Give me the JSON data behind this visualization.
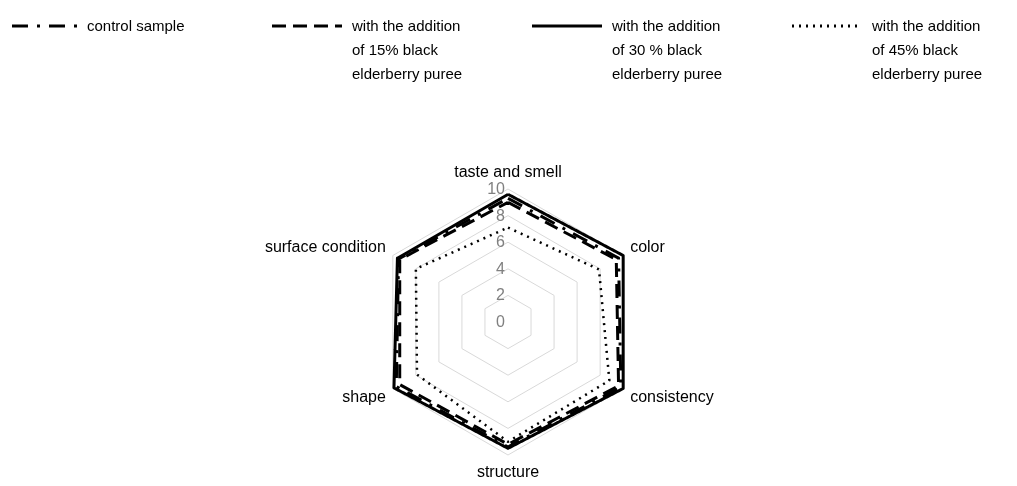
{
  "chart_data": {
    "type": "radar",
    "categories": [
      "taste and smell",
      "color",
      "consistency",
      "structure",
      "shape",
      "surface condition"
    ],
    "ylim": [
      0,
      10
    ],
    "yticks": [
      0,
      2,
      4,
      6,
      8,
      10
    ],
    "grid": true,
    "legend": "top",
    "series": [
      {
        "name": "control sample",
        "color": "#000000",
        "line_style": "dashdot",
        "values": [
          9.3,
          9.6,
          9.8,
          9.4,
          9.7,
          9.5
        ]
      },
      {
        "name": "with the addition of 15% black elderberry puree",
        "color": "#000000",
        "line_style": "dashed",
        "values": [
          9.0,
          9.4,
          9.6,
          9.2,
          9.4,
          9.4
        ]
      },
      {
        "name": "with the addition of 30 % black elderberry puree",
        "color": "#000000",
        "line_style": "solid",
        "values": [
          9.6,
          10.0,
          10.0,
          9.5,
          9.9,
          9.6
        ]
      },
      {
        "name": "with the addition of 45% black elderberry puree",
        "color": "#000000",
        "line_style": "dotted",
        "values": [
          7.1,
          7.9,
          8.8,
          9.0,
          7.9,
          8.0
        ]
      }
    ]
  }
}
